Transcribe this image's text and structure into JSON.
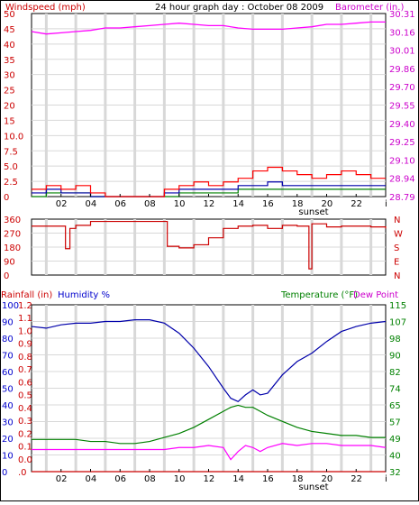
{
  "header": {
    "left_label": "Windspeed (mph)",
    "title": "24 hour graph day : October 08 2009",
    "right_label": "Barometer (in.)"
  },
  "bottom_header": {
    "rainfall_label": "Rainfall (in)",
    "humidity_label": "Humidity %",
    "temperature_label": "Temperature (°F)",
    "dewpoint_label": "Dew Point"
  },
  "time_axis": {
    "ticks": [
      "02",
      "04",
      "06",
      "08",
      "10",
      "12",
      "14",
      "16",
      "18",
      "20",
      "22",
      "i"
    ],
    "sunset_label": "sunset"
  },
  "colors": {
    "wind": "#ff0000",
    "gust": "#0000aa",
    "low": "#008000",
    "barometer": "#ff00ff",
    "direction": "#cc0000",
    "humidity": "#0000aa",
    "temperature": "#008000",
    "dewpoint": "#ff00ff",
    "rain": "#cc0000",
    "grid": "#d8d8d8",
    "axis_left": "#cc0000",
    "axis_right": "#cc00cc",
    "axis_blue": "#0000cc",
    "axis_green": "#008000"
  },
  "chart_data": [
    {
      "type": "line",
      "name": "wind-barometer",
      "x_hours": [
        0,
        1,
        2,
        3,
        4,
        5,
        6,
        7,
        8,
        9,
        10,
        11,
        12,
        13,
        14,
        15,
        16,
        17,
        18,
        19,
        20,
        21,
        22,
        23,
        24
      ],
      "series": [
        {
          "name": "Windspeed (mph)",
          "axis": "left",
          "values": [
            2,
            3,
            2,
            3,
            1,
            0,
            0,
            0,
            0,
            2,
            3,
            4,
            3,
            4,
            5,
            7,
            8,
            7,
            6,
            5,
            6,
            7,
            6,
            5,
            5
          ]
        },
        {
          "name": "Barometer (in.)",
          "axis": "right",
          "values": [
            30.16,
            30.14,
            30.15,
            30.16,
            30.17,
            30.19,
            30.19,
            30.2,
            30.21,
            30.22,
            30.23,
            30.22,
            30.21,
            30.21,
            30.19,
            30.18,
            30.18,
            30.18,
            30.19,
            30.2,
            30.22,
            30.22,
            30.23,
            30.24,
            30.24
          ]
        }
      ],
      "extra_series": [
        {
          "values": [
            1,
            2,
            1,
            1,
            0,
            0,
            0,
            0,
            0,
            1,
            2,
            2,
            2,
            2,
            3,
            3,
            4,
            3,
            3,
            3,
            3,
            3,
            3,
            3,
            3
          ]
        },
        {
          "values": [
            0,
            1,
            1,
            1,
            0,
            0,
            0,
            0,
            0,
            0,
            1,
            1,
            1,
            1,
            2,
            2,
            2,
            2,
            2,
            2,
            2,
            2,
            2,
            2,
            2
          ]
        }
      ],
      "yleft_ticks": [
        "50",
        "45",
        "40",
        "35",
        "30",
        "25",
        "20",
        "15",
        "10.0",
        "7.5",
        "5.0",
        "2.5",
        "0"
      ],
      "yright_ticks": [
        "30.31",
        "30.16",
        "30.01",
        "29.86",
        "29.70",
        "29.55",
        "29.40",
        "29.25",
        "29.10",
        "28.94",
        "28.79"
      ],
      "ylim_left": [
        0,
        50
      ],
      "ylim_right": [
        28.79,
        30.31
      ]
    },
    {
      "type": "line",
      "name": "wind-direction",
      "x_hours": [
        0,
        1,
        2,
        2.3,
        2.6,
        3,
        4,
        5,
        6,
        7,
        8,
        9,
        9.2,
        10,
        11,
        12,
        13,
        14,
        15,
        16,
        17,
        18,
        18.8,
        19,
        20,
        21,
        22,
        23,
        24
      ],
      "series": [
        {
          "name": "Wind direction",
          "values": [
            315,
            315,
            315,
            170,
            300,
            320,
            345,
            345,
            345,
            345,
            345,
            345,
            185,
            175,
            195,
            240,
            300,
            315,
            320,
            300,
            320,
            315,
            40,
            330,
            310,
            315,
            315,
            310,
            300
          ]
        }
      ],
      "yleft_ticks": [
        "360",
        "270",
        "180",
        "90",
        "0"
      ],
      "yright_ticks": [
        "N",
        "W",
        "S",
        "E",
        "N"
      ],
      "ylim": [
        0,
        360
      ]
    },
    {
      "type": "line",
      "name": "rain-humidity-temperature",
      "x_hours": [
        0,
        1,
        2,
        3,
        4,
        5,
        6,
        7,
        8,
        9,
        10,
        11,
        12,
        13,
        13.5,
        14,
        14.5,
        15,
        15.5,
        16,
        17,
        18,
        19,
        20,
        21,
        22,
        23,
        24
      ],
      "series": [
        {
          "name": "Humidity %",
          "axis": "left",
          "values": [
            87,
            86,
            88,
            89,
            89,
            90,
            90,
            91,
            91,
            89,
            83,
            74,
            63,
            50,
            44,
            42,
            46,
            49,
            46,
            47,
            58,
            66,
            71,
            78,
            84,
            87,
            89,
            90
          ]
        },
        {
          "name": "Temperature (°F)",
          "axis": "right",
          "values": [
            48,
            48,
            48,
            48,
            47,
            47,
            46,
            46,
            47,
            49,
            51,
            54,
            58,
            62,
            64,
            65,
            64,
            64,
            62,
            60,
            57,
            54,
            52,
            51,
            50,
            50,
            49,
            49
          ]
        },
        {
          "name": "Dew Point",
          "axis": "right",
          "values": [
            43,
            43,
            43,
            43,
            43,
            43,
            43,
            43,
            43,
            43,
            44,
            44,
            45,
            44,
            38,
            42,
            45,
            44,
            42,
            44,
            46,
            45,
            46,
            46,
            45,
            45,
            45,
            44
          ]
        },
        {
          "name": "Rainfall (in)",
          "axis": "left",
          "values": [
            0,
            0,
            0,
            0,
            0,
            0,
            0,
            0,
            0,
            0,
            0,
            0,
            0,
            0,
            0,
            0,
            0,
            0,
            0,
            0,
            0,
            0,
            0,
            0,
            0,
            0,
            0,
            0
          ]
        }
      ],
      "yleft_rain_ticks": [
        ".0",
        "0.0",
        "0.1",
        "0.2",
        "0.3",
        "0.4",
        "0.5",
        "0.6",
        "0.7",
        "0.8",
        "0.9",
        "1.0",
        "1.1",
        "1.2"
      ],
      "yleft_hum_ticks": [
        "100",
        "90",
        "80",
        "70",
        "60",
        "50",
        "40",
        "30",
        "20",
        "10",
        "0"
      ],
      "yright_ticks": [
        "115",
        "107",
        "98",
        "90",
        "82",
        "74",
        "65",
        "57",
        "49",
        "40",
        "32"
      ],
      "ylim_humidity": [
        0,
        100
      ],
      "ylim_temperature": [
        32,
        115
      ]
    }
  ]
}
